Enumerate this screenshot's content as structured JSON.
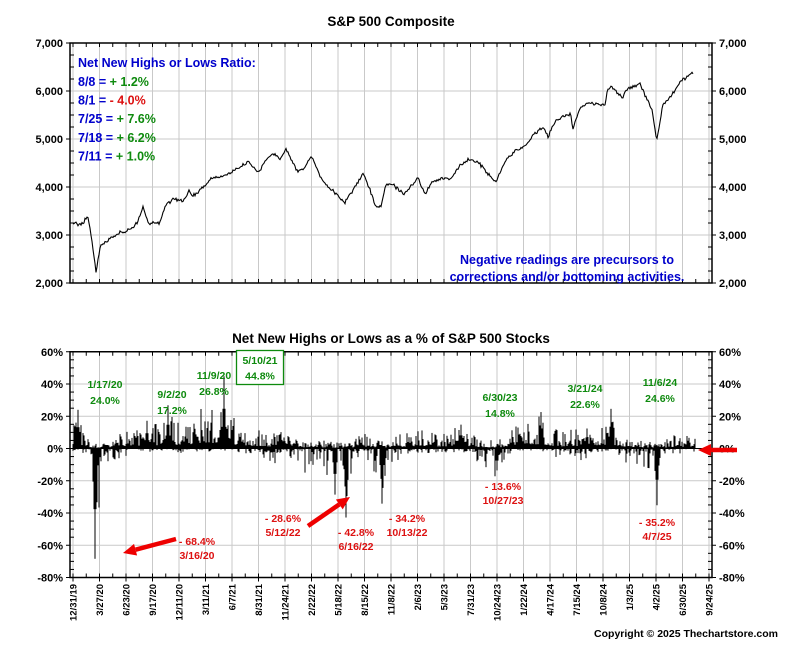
{
  "colors": {
    "blue": "#0000cc",
    "green": "#0e8a0e",
    "red": "#dd1111",
    "arrow_red": "#ee0000",
    "grid": "#c9c9c9",
    "line": "#000000",
    "bar": "#000000",
    "frame": "#000000",
    "background": "#ffffff"
  },
  "top_chart": {
    "title": "S&P 500 Composite",
    "y_tick_labels": [
      "7,000",
      "6,000",
      "5,000",
      "4,000",
      "3,000",
      "2,000"
    ],
    "legend_title": "Net New Highs or Lows Ratio:",
    "legend_entries": [
      {
        "prefix": "8/8 = ",
        "value": "+ 1.2%",
        "sentiment": "green"
      },
      {
        "prefix": "8/1 = ",
        "value": "- 4.0%",
        "sentiment": "red"
      },
      {
        "prefix": "7/25 = ",
        "value": "+ 7.6%",
        "sentiment": "green"
      },
      {
        "prefix": "7/18 = ",
        "value": "+ 6.2%",
        "sentiment": "green"
      },
      {
        "prefix": "7/11 = ",
        "value": "+ 1.0%",
        "sentiment": "green"
      }
    ],
    "note": [
      "Negative readings are precursors to",
      "corrections and/or bottoming activities."
    ]
  },
  "bottom_chart": {
    "title": "Net New Highs or Lows as a % of S&P 500 Stocks",
    "y_tick_labels": [
      "60%",
      "40%",
      "20%",
      "0%",
      "-20%",
      "-40%",
      "-60%",
      "-80%"
    ],
    "boxed_annotation": {
      "date": "5/10/21",
      "value": "44.8%"
    },
    "green_annotations": [
      {
        "date": "1/17/20",
        "value": "24.0%"
      },
      {
        "date": "9/2/20",
        "value": "17.2%"
      },
      {
        "date": "11/9/20",
        "value": "26.8%"
      },
      {
        "date": "6/30/23",
        "value": "14.8%"
      },
      {
        "date": "3/21/24",
        "value": "22.6%"
      },
      {
        "date": "11/6/24",
        "value": "24.6%"
      }
    ],
    "red_annotations": [
      {
        "value": "- 68.4%",
        "date": "3/16/20"
      },
      {
        "value": "- 28.6%",
        "date": "5/12/22"
      },
      {
        "value": "- 42.8%",
        "date": "6/16/22"
      },
      {
        "value": "- 34.2%",
        "date": "10/13/22"
      },
      {
        "value": "- 13.6%",
        "date": "10/27/23"
      },
      {
        "value": "- 35.2%",
        "date": "4/7/25"
      }
    ]
  },
  "x_axis_labels": [
    "12/31/19",
    "3/27/20",
    "6/23/20",
    "9/17/20",
    "12/11/20",
    "3/11/21",
    "6/7/21",
    "8/31/21",
    "11/24/21",
    "2/22/22",
    "5/18/22",
    "8/15/22",
    "11/8/22",
    "2/6/23",
    "5/3/23",
    "7/31/23",
    "10/24/23",
    "1/22/24",
    "4/17/24",
    "7/15/24",
    "10/8/24",
    "1/3/25",
    "4/2/25",
    "6/30/25",
    "9/24/25"
  ],
  "footer": {
    "copyright": "Copyright © 2025 Thechartstore.com"
  },
  "chart_data": [
    {
      "type": "line",
      "title": "S&P 500 Composite",
      "ylim": [
        2000,
        7000
      ],
      "y_ticks": [
        2000,
        3000,
        4000,
        5000,
        6000,
        7000
      ],
      "x_range_labels": [
        "12/31/19",
        "9/24/25"
      ],
      "x_unit": "months_since_2019-12-31",
      "grid": true,
      "recent_readings": [
        {
          "date": "8/8",
          "pct": 1.2
        },
        {
          "date": "8/1",
          "pct": -4.0
        },
        {
          "date": "7/25",
          "pct": 7.6
        },
        {
          "date": "7/18",
          "pct": 6.2
        },
        {
          "date": "7/11",
          "pct": 1.0
        }
      ],
      "points": [
        [
          0,
          3231
        ],
        [
          1,
          3226
        ],
        [
          1.6,
          3386
        ],
        [
          2.0,
          2954
        ],
        [
          2.5,
          2237
        ],
        [
          3,
          2790
        ],
        [
          4,
          2912
        ],
        [
          5,
          3044
        ],
        [
          6,
          3100
        ],
        [
          6.5,
          3155
        ],
        [
          7,
          3271
        ],
        [
          7.6,
          3580
        ],
        [
          8.2,
          3237
        ],
        [
          9,
          3270
        ],
        [
          9.4,
          3233
        ],
        [
          10,
          3622
        ],
        [
          11,
          3756
        ],
        [
          12,
          3714
        ],
        [
          12.6,
          3934
        ],
        [
          13,
          3811
        ],
        [
          14,
          3973
        ],
        [
          15,
          4181
        ],
        [
          16,
          4204
        ],
        [
          17,
          4298
        ],
        [
          18,
          4395
        ],
        [
          19,
          4523
        ],
        [
          20.2,
          4308
        ],
        [
          21,
          4605
        ],
        [
          21.9,
          4690
        ],
        [
          22.5,
          4567
        ],
        [
          23.1,
          4797
        ],
        [
          24.3,
          4327
        ],
        [
          25,
          4374
        ],
        [
          25.9,
          4631
        ],
        [
          27,
          4132
        ],
        [
          28.3,
          3900
        ],
        [
          29.5,
          3667
        ],
        [
          31,
          4130
        ],
        [
          31.5,
          4305
        ],
        [
          32.9,
          3586
        ],
        [
          33.4,
          3577
        ],
        [
          34,
          4080
        ],
        [
          34.9,
          4027
        ],
        [
          35.9,
          3840
        ],
        [
          37,
          4077
        ],
        [
          37.4,
          4195
        ],
        [
          38.2,
          3855
        ],
        [
          39,
          4109
        ],
        [
          40,
          4169
        ],
        [
          41,
          4180
        ],
        [
          42,
          4450
        ],
        [
          43,
          4589
        ],
        [
          44,
          4508
        ],
        [
          45,
          4288
        ],
        [
          45.9,
          4117
        ],
        [
          47,
          4568
        ],
        [
          48,
          4770
        ],
        [
          49,
          4846
        ],
        [
          50,
          5096
        ],
        [
          51,
          5254
        ],
        [
          51.6,
          5036
        ],
        [
          52,
          5278
        ],
        [
          53,
          5460
        ],
        [
          54,
          5522
        ],
        [
          54.2,
          5186
        ],
        [
          55,
          5648
        ],
        [
          56,
          5762
        ],
        [
          57.7,
          5705
        ],
        [
          58,
          6032
        ],
        [
          58.4,
          6090
        ],
        [
          59.6,
          5868
        ],
        [
          60,
          6041
        ],
        [
          61.5,
          6144
        ],
        [
          62.8,
          5612
        ],
        [
          63.3,
          4983
        ],
        [
          64,
          5700
        ],
        [
          65,
          5912
        ],
        [
          66,
          6205
        ],
        [
          67,
          6340
        ],
        [
          67.3,
          6389
        ]
      ]
    },
    {
      "type": "bar",
      "title": "Net New Highs or Lows as a % of S&P 500 Stocks",
      "ylim": [
        -80,
        60
      ],
      "y_ticks": [
        -80,
        -60,
        -40,
        -20,
        0,
        20,
        40,
        60
      ],
      "x_tick_labels": [
        "12/31/19",
        "3/27/20",
        "6/23/20",
        "9/17/20",
        "12/11/20",
        "3/11/21",
        "6/7/21",
        "8/31/21",
        "11/24/21",
        "2/22/22",
        "5/18/22",
        "8/15/22",
        "11/8/22",
        "2/6/23",
        "5/3/23",
        "7/31/23",
        "10/24/23",
        "1/22/24",
        "4/17/24",
        "7/15/24",
        "10/8/24",
        "1/3/25",
        "4/2/25",
        "6/30/25",
        "9/24/25"
      ],
      "grid": true,
      "annotated_extremes": [
        {
          "date": "1/17/20",
          "pct": 24.0
        },
        {
          "date": "9/2/20",
          "pct": 17.2
        },
        {
          "date": "11/9/20",
          "pct": 26.8
        },
        {
          "date": "5/10/21",
          "pct": 44.8
        },
        {
          "date": "6/30/23",
          "pct": 14.8
        },
        {
          "date": "3/21/24",
          "pct": 22.6
        },
        {
          "date": "11/6/24",
          "pct": 24.6
        },
        {
          "date": "3/16/20",
          "pct": -68.4
        },
        {
          "date": "5/12/22",
          "pct": -28.6
        },
        {
          "date": "6/16/22",
          "pct": -42.8
        },
        {
          "date": "10/13/22",
          "pct": -34.2
        },
        {
          "date": "10/27/23",
          "pct": -13.6
        },
        {
          "date": "4/7/25",
          "pct": -35.2
        }
      ],
      "spikes": [
        [
          0.008,
          24.0
        ],
        [
          0.034,
          -68.4
        ],
        [
          0.117,
          17.2
        ],
        [
          0.15,
          26.8
        ],
        [
          0.237,
          44.8
        ],
        [
          0.412,
          -28.6
        ],
        [
          0.429,
          -42.8
        ],
        [
          0.486,
          -34.2
        ],
        [
          0.61,
          14.8
        ],
        [
          0.667,
          -13.6
        ],
        [
          0.736,
          22.6
        ],
        [
          0.846,
          24.6
        ],
        [
          0.919,
          -35.2
        ]
      ],
      "approx_envelope": [
        [
          0.0,
          22,
          2
        ],
        [
          0.008,
          25,
          2
        ],
        [
          0.018,
          13,
          3
        ],
        [
          0.028,
          5,
          22
        ],
        [
          0.034,
          3,
          55
        ],
        [
          0.04,
          3,
          45
        ],
        [
          0.048,
          4,
          26
        ],
        [
          0.058,
          5,
          14
        ],
        [
          0.07,
          9,
          8
        ],
        [
          0.09,
          13,
          3
        ],
        [
          0.105,
          14,
          2
        ],
        [
          0.117,
          17,
          2
        ],
        [
          0.132,
          15,
          2
        ],
        [
          0.15,
          22,
          2
        ],
        [
          0.165,
          17,
          3
        ],
        [
          0.185,
          22,
          2
        ],
        [
          0.21,
          26,
          2
        ],
        [
          0.237,
          33,
          2
        ],
        [
          0.255,
          18,
          3
        ],
        [
          0.275,
          14,
          5
        ],
        [
          0.295,
          12,
          8
        ],
        [
          0.315,
          10,
          12
        ],
        [
          0.33,
          11,
          7
        ],
        [
          0.345,
          8,
          12
        ],
        [
          0.36,
          6,
          20
        ],
        [
          0.378,
          7,
          12
        ],
        [
          0.398,
          5,
          17
        ],
        [
          0.412,
          4,
          25
        ],
        [
          0.422,
          4,
          18
        ],
        [
          0.429,
          3,
          36
        ],
        [
          0.442,
          6,
          12
        ],
        [
          0.458,
          10,
          6
        ],
        [
          0.472,
          6,
          13
        ],
        [
          0.486,
          5,
          28
        ],
        [
          0.5,
          6,
          13
        ],
        [
          0.515,
          9,
          5
        ],
        [
          0.535,
          10,
          4
        ],
        [
          0.555,
          12,
          3
        ],
        [
          0.575,
          10,
          3
        ],
        [
          0.595,
          12,
          3
        ],
        [
          0.61,
          14,
          2
        ],
        [
          0.625,
          9,
          6
        ],
        [
          0.64,
          7,
          10
        ],
        [
          0.655,
          6,
          15
        ],
        [
          0.667,
          5,
          20
        ],
        [
          0.678,
          8,
          7
        ],
        [
          0.692,
          16,
          2
        ],
        [
          0.712,
          19,
          2
        ],
        [
          0.736,
          21,
          2
        ],
        [
          0.752,
          15,
          3
        ],
        [
          0.765,
          10,
          9
        ],
        [
          0.78,
          14,
          3
        ],
        [
          0.8,
          12,
          13
        ],
        [
          0.812,
          15,
          3
        ],
        [
          0.83,
          17,
          2
        ],
        [
          0.846,
          21,
          2
        ],
        [
          0.862,
          12,
          5
        ],
        [
          0.875,
          8,
          13
        ],
        [
          0.89,
          6,
          10
        ],
        [
          0.902,
          5,
          15
        ],
        [
          0.912,
          4,
          20
        ],
        [
          0.919,
          3,
          28
        ],
        [
          0.928,
          4,
          15
        ],
        [
          0.94,
          8,
          4
        ],
        [
          0.955,
          9,
          3
        ],
        [
          0.977,
          8,
          3
        ]
      ]
    }
  ]
}
